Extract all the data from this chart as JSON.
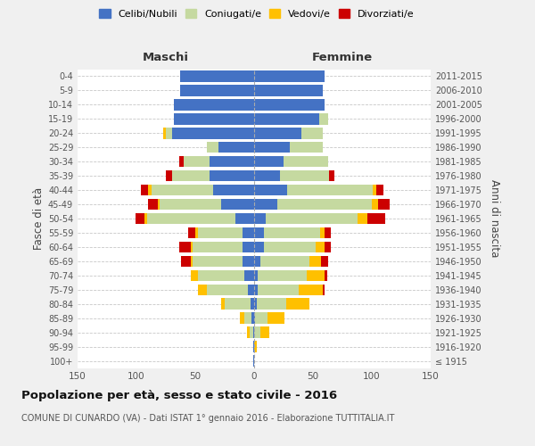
{
  "age_groups": [
    "100+",
    "95-99",
    "90-94",
    "85-89",
    "80-84",
    "75-79",
    "70-74",
    "65-69",
    "60-64",
    "55-59",
    "50-54",
    "45-49",
    "40-44",
    "35-39",
    "30-34",
    "25-29",
    "20-24",
    "15-19",
    "10-14",
    "5-9",
    "0-4"
  ],
  "birth_years": [
    "≤ 1915",
    "1916-1920",
    "1921-1925",
    "1926-1930",
    "1931-1935",
    "1936-1940",
    "1941-1945",
    "1946-1950",
    "1951-1955",
    "1956-1960",
    "1961-1965",
    "1966-1970",
    "1971-1975",
    "1976-1980",
    "1981-1985",
    "1986-1990",
    "1991-1995",
    "1996-2000",
    "2001-2005",
    "2006-2010",
    "2011-2015"
  ],
  "maschi": {
    "celibi": [
      1,
      1,
      1,
      2,
      3,
      5,
      8,
      10,
      10,
      10,
      16,
      28,
      35,
      38,
      38,
      30,
      70,
      68,
      68,
      63,
      63
    ],
    "coniugati": [
      0,
      0,
      3,
      6,
      22,
      35,
      40,
      42,
      42,
      38,
      75,
      52,
      52,
      32,
      22,
      10,
      5,
      0,
      0,
      0,
      0
    ],
    "vedovi": [
      0,
      0,
      2,
      4,
      3,
      8,
      6,
      2,
      2,
      2,
      2,
      2,
      3,
      0,
      0,
      0,
      2,
      0,
      0,
      0,
      0
    ],
    "divorziati": [
      0,
      0,
      0,
      0,
      0,
      0,
      0,
      8,
      10,
      6,
      8,
      8,
      6,
      5,
      4,
      0,
      0,
      0,
      0,
      0,
      0
    ]
  },
  "femmine": {
    "nubili": [
      0,
      0,
      0,
      1,
      2,
      3,
      3,
      5,
      8,
      8,
      10,
      20,
      28,
      22,
      25,
      30,
      40,
      55,
      60,
      58,
      60
    ],
    "coniugate": [
      0,
      0,
      5,
      10,
      25,
      35,
      42,
      42,
      44,
      48,
      78,
      80,
      73,
      42,
      38,
      28,
      18,
      8,
      0,
      0,
      0
    ],
    "vedove": [
      0,
      2,
      8,
      15,
      20,
      20,
      15,
      10,
      8,
      4,
      8,
      5,
      3,
      0,
      0,
      0,
      0,
      0,
      0,
      0,
      0
    ],
    "divorziate": [
      0,
      0,
      0,
      0,
      0,
      2,
      2,
      6,
      5,
      5,
      15,
      10,
      6,
      4,
      0,
      0,
      0,
      0,
      0,
      0,
      0
    ]
  },
  "colors": {
    "celibi": "#4472c4",
    "coniugati": "#c5d9a0",
    "vedovi": "#ffc000",
    "divorziati": "#cc0000"
  },
  "xlim": 150,
  "title": "Popolazione per età, sesso e stato civile - 2016",
  "subtitle": "COMUNE DI CUNARDO (VA) - Dati ISTAT 1° gennaio 2016 - Elaborazione TUTTITALIA.IT",
  "ylabel_left": "Fasce di età",
  "ylabel_right": "Anni di nascita",
  "legend_labels": [
    "Celibi/Nubili",
    "Coniugati/e",
    "Vedovi/e",
    "Divorziati/e"
  ],
  "maschi_label": "Maschi",
  "femmine_label": "Femmine",
  "bg_color": "#f0f0f0",
  "plot_bg": "#ffffff"
}
